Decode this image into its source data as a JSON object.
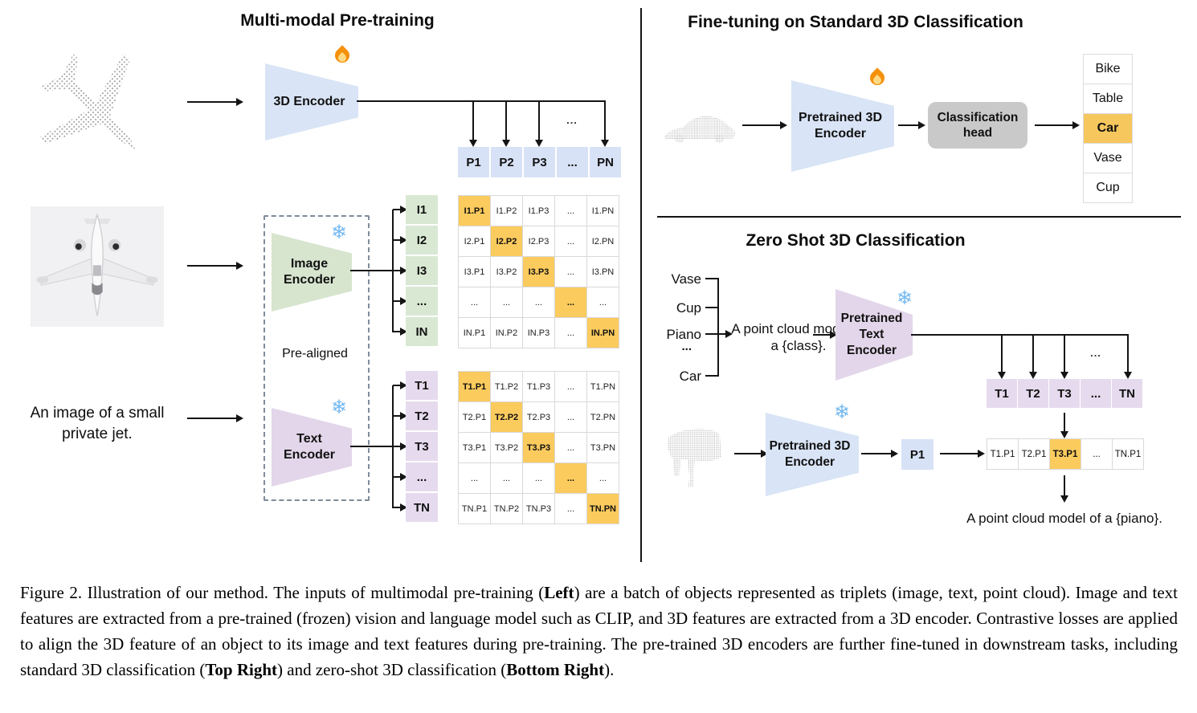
{
  "left": {
    "title": "Multi-modal Pre-training",
    "encoder_3d_label": "3D Encoder",
    "image_encoder_label": "Image\nEncoder",
    "text_encoder_label": "Text\nEncoder",
    "pre_aligned_label": "Pre-aligned",
    "jet_caption": "An image of a small\nprivate jet.",
    "dots": "...",
    "p_row": [
      "P1",
      "P2",
      "P3",
      "...",
      "PN"
    ],
    "i_col": [
      "I1",
      "I2",
      "I3",
      "...",
      "IN"
    ],
    "t_col": [
      "T1",
      "T2",
      "T3",
      "...",
      "TN"
    ],
    "i_matrix": {
      "diagonal_highlight": true,
      "rows": [
        [
          "I1.P1",
          "I1.P2",
          "I1.P3",
          "...",
          "I1.PN"
        ],
        [
          "I2.P1",
          "I2.P2",
          "I2.P3",
          "...",
          "I2.PN"
        ],
        [
          "I3.P1",
          "I3.P2",
          "I3.P3",
          "...",
          "I3.PN"
        ],
        [
          "...",
          "...",
          "...",
          "...",
          "..."
        ],
        [
          "IN.P1",
          "IN.P2",
          "IN.P3",
          "...",
          "IN.PN"
        ]
      ]
    },
    "t_matrix": {
      "diagonal_highlight": true,
      "rows": [
        [
          "T1.P1",
          "T1.P2",
          "T1.P3",
          "...",
          "T1.PN"
        ],
        [
          "T2.P1",
          "T2.P2",
          "T2.P3",
          "...",
          "T2.PN"
        ],
        [
          "T3.P1",
          "T3.P2",
          "T3.P3",
          "...",
          "T3.PN"
        ],
        [
          "...",
          "...",
          "...",
          "...",
          "..."
        ],
        [
          "TN.P1",
          "TN.P2",
          "TN.P3",
          "...",
          "TN.PN"
        ]
      ]
    }
  },
  "top_right": {
    "title": "Fine-tuning on Standard 3D Classification",
    "encoder_label": "Pretrained 3D\nEncoder",
    "head_label": "Classification\nhead",
    "classes": [
      "Bike",
      "Table",
      "Car",
      "Vase",
      "Cup"
    ],
    "highlight_index": 2,
    "highlighted_class": "Car"
  },
  "bottom_right": {
    "title": "Zero Shot 3D Classification",
    "prompt_classes": [
      "Vase",
      "Cup",
      "Piano",
      "...",
      "Car"
    ],
    "prompt": "A point cloud model of\na {class}.",
    "text_encoder_label": "Pretrained Text\nEncoder",
    "encoder_3d_label": "Pretrained 3D\nEncoder",
    "dots": "...",
    "t_row": [
      "T1",
      "T2",
      "T3",
      "...",
      "TN"
    ],
    "p_cell": "P1",
    "tp_row": [
      "T1.P1",
      "T2.P1",
      "T3.P1",
      "...",
      "TN.P1"
    ],
    "tp_highlight_index": 2,
    "output_prompt": "A point cloud model of a {piano}."
  },
  "icons": {
    "fire": "🔥",
    "snowflake": "❄"
  },
  "colors": {
    "encoder_blue": "#d9e4f6",
    "encoder_green": "#d7e5cf",
    "encoder_purple": "#e3d6ea",
    "cell_blue": "#d8e2f6",
    "cell_green": "#d9e8d3",
    "cell_purple": "#e6dbee",
    "highlight_orange": "#fbcb5e",
    "head_gray": "#c9c9c9"
  },
  "caption": {
    "segments": [
      {
        "text": "Figure 2. Illustration of our method. The inputs of multimodal pre-training (",
        "bold": false
      },
      {
        "text": "Left",
        "bold": true
      },
      {
        "text": ") are a batch of objects represented as triplets (image, text, point cloud). Image and text features are extracted from a pre-trained (frozen) vision and language model such as CLIP, and 3D features are extracted from a 3D encoder. Contrastive losses are applied to align the 3D feature of an object to its image and text features during pre-training. The pre-trained 3D encoders are further fine-tuned in downstream tasks, including standard 3D classification (",
        "bold": false
      },
      {
        "text": "Top Right",
        "bold": true
      },
      {
        "text": ") and zero-shot 3D classification (",
        "bold": false
      },
      {
        "text": "Bottom Right",
        "bold": true
      },
      {
        "text": ").",
        "bold": false
      }
    ]
  }
}
